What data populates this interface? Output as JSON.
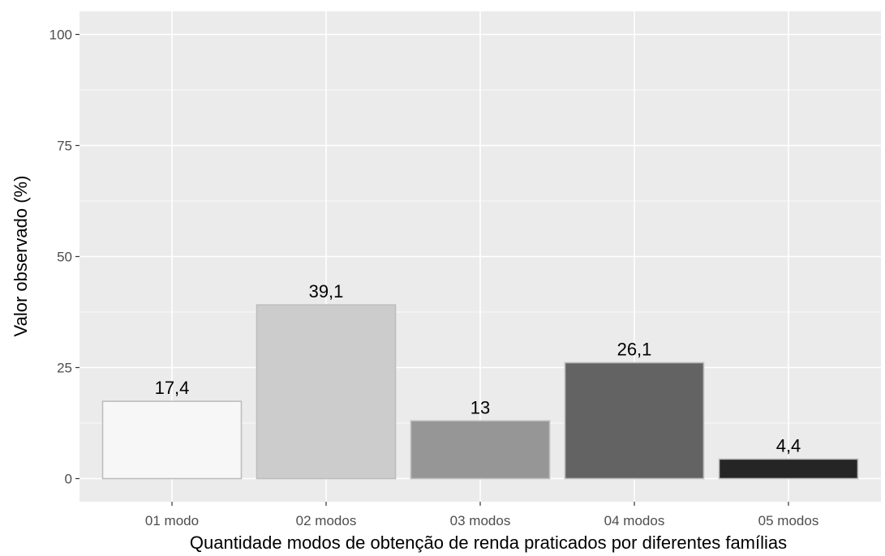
{
  "chart_data": {
    "type": "bar",
    "title": "",
    "xlabel": "Quantidade modos de obtenção de renda praticados por diferentes famílias",
    "ylabel": "Valor observado (%)",
    "categories": [
      "01 modo",
      "02 modos",
      "03 modos",
      "04 modos",
      "05 modos"
    ],
    "values": [
      17.4,
      39.1,
      13,
      26.1,
      4.4
    ],
    "value_labels": [
      "17,4",
      "39,1",
      "13",
      "26,1",
      "4,4"
    ],
    "bar_colors": [
      "#f7f7f7",
      "#cccccc",
      "#969696",
      "#636363",
      "#252525"
    ],
    "bar_outline": "#bdbdbd",
    "ylim": [
      0,
      100
    ],
    "y_ticks": [
      0,
      25,
      50,
      75,
      100
    ],
    "grid": true,
    "panel_background": "#ebebeb",
    "legend": "none"
  }
}
